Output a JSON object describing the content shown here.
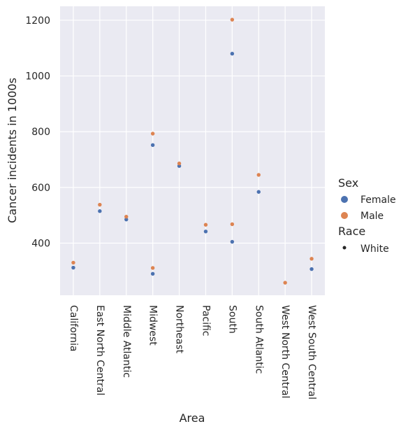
{
  "chart_data": {
    "type": "scatter",
    "xlabel": "Area",
    "ylabel": "Cancer incidents in 1000s",
    "categories": [
      "California",
      "East North Central",
      "Middle Atlantic",
      "Midwest",
      "Northeast",
      "Pacific",
      "South",
      "South Atlantic",
      "West North Central",
      "West South Central"
    ],
    "ylim": [
      213,
      1250
    ],
    "yticks": [
      400,
      600,
      800,
      1000,
      1200
    ],
    "grid": true,
    "series": [
      {
        "name": "Female",
        "color": "#4c72b0",
        "points": [
          {
            "x": "California",
            "y": 312
          },
          {
            "x": "East North Central",
            "y": 515
          },
          {
            "x": "Middle Atlantic",
            "y": 485
          },
          {
            "x": "Midwest",
            "y": 752
          },
          {
            "x": "Midwest",
            "y": 290
          },
          {
            "x": "Northeast",
            "y": 677
          },
          {
            "x": "Pacific",
            "y": 442
          },
          {
            "x": "South",
            "y": 1080
          },
          {
            "x": "South",
            "y": 405
          },
          {
            "x": "South Atlantic",
            "y": 584
          },
          {
            "x": "West South Central",
            "y": 307
          }
        ]
      },
      {
        "name": "Male",
        "color": "#dd8452",
        "points": [
          {
            "x": "California",
            "y": 330
          },
          {
            "x": "East North Central",
            "y": 538
          },
          {
            "x": "Middle Atlantic",
            "y": 495
          },
          {
            "x": "Midwest",
            "y": 793
          },
          {
            "x": "Midwest",
            "y": 311
          },
          {
            "x": "Northeast",
            "y": 686
          },
          {
            "x": "Pacific",
            "y": 466
          },
          {
            "x": "South",
            "y": 1202
          },
          {
            "x": "South",
            "y": 468
          },
          {
            "x": "South Atlantic",
            "y": 645
          },
          {
            "x": "West North Central",
            "y": 258
          },
          {
            "x": "West South Central",
            "y": 344
          }
        ]
      }
    ],
    "legend": {
      "placement": "right",
      "hue_title": "Sex",
      "hue_entries": [
        "Female",
        "Male"
      ],
      "style_title": "Race",
      "style_entries": [
        "White"
      ]
    }
  }
}
